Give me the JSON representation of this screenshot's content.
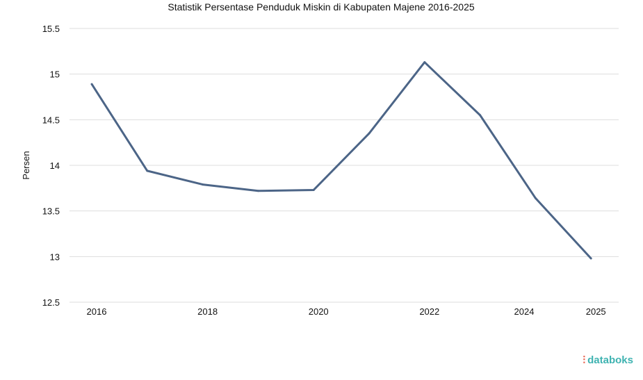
{
  "chart_data": {
    "type": "line",
    "title": "Statistik Persentase Penduduk Miskin di Kabupaten Majene 2016-2025",
    "xlabel": "",
    "ylabel": "Persen",
    "x": [
      2016,
      2017,
      2018,
      2019,
      2020,
      2021,
      2022,
      2023,
      2024,
      2025
    ],
    "x_tick_labels": [
      "2016",
      "2018",
      "2020",
      "2022",
      "2024",
      "2025"
    ],
    "series": [
      {
        "name": "Persen",
        "values": [
          14.89,
          13.94,
          13.79,
          13.72,
          13.73,
          14.35,
          15.13,
          14.55,
          13.64,
          12.98
        ],
        "color": "#4c6587"
      }
    ],
    "ylim": [
      12.5,
      15.5
    ],
    "y_ticks": [
      "12.5",
      "13",
      "13.5",
      "14",
      "14.5",
      "15",
      "15.5"
    ],
    "grid": true,
    "legend": "none"
  },
  "brand": "databoks"
}
